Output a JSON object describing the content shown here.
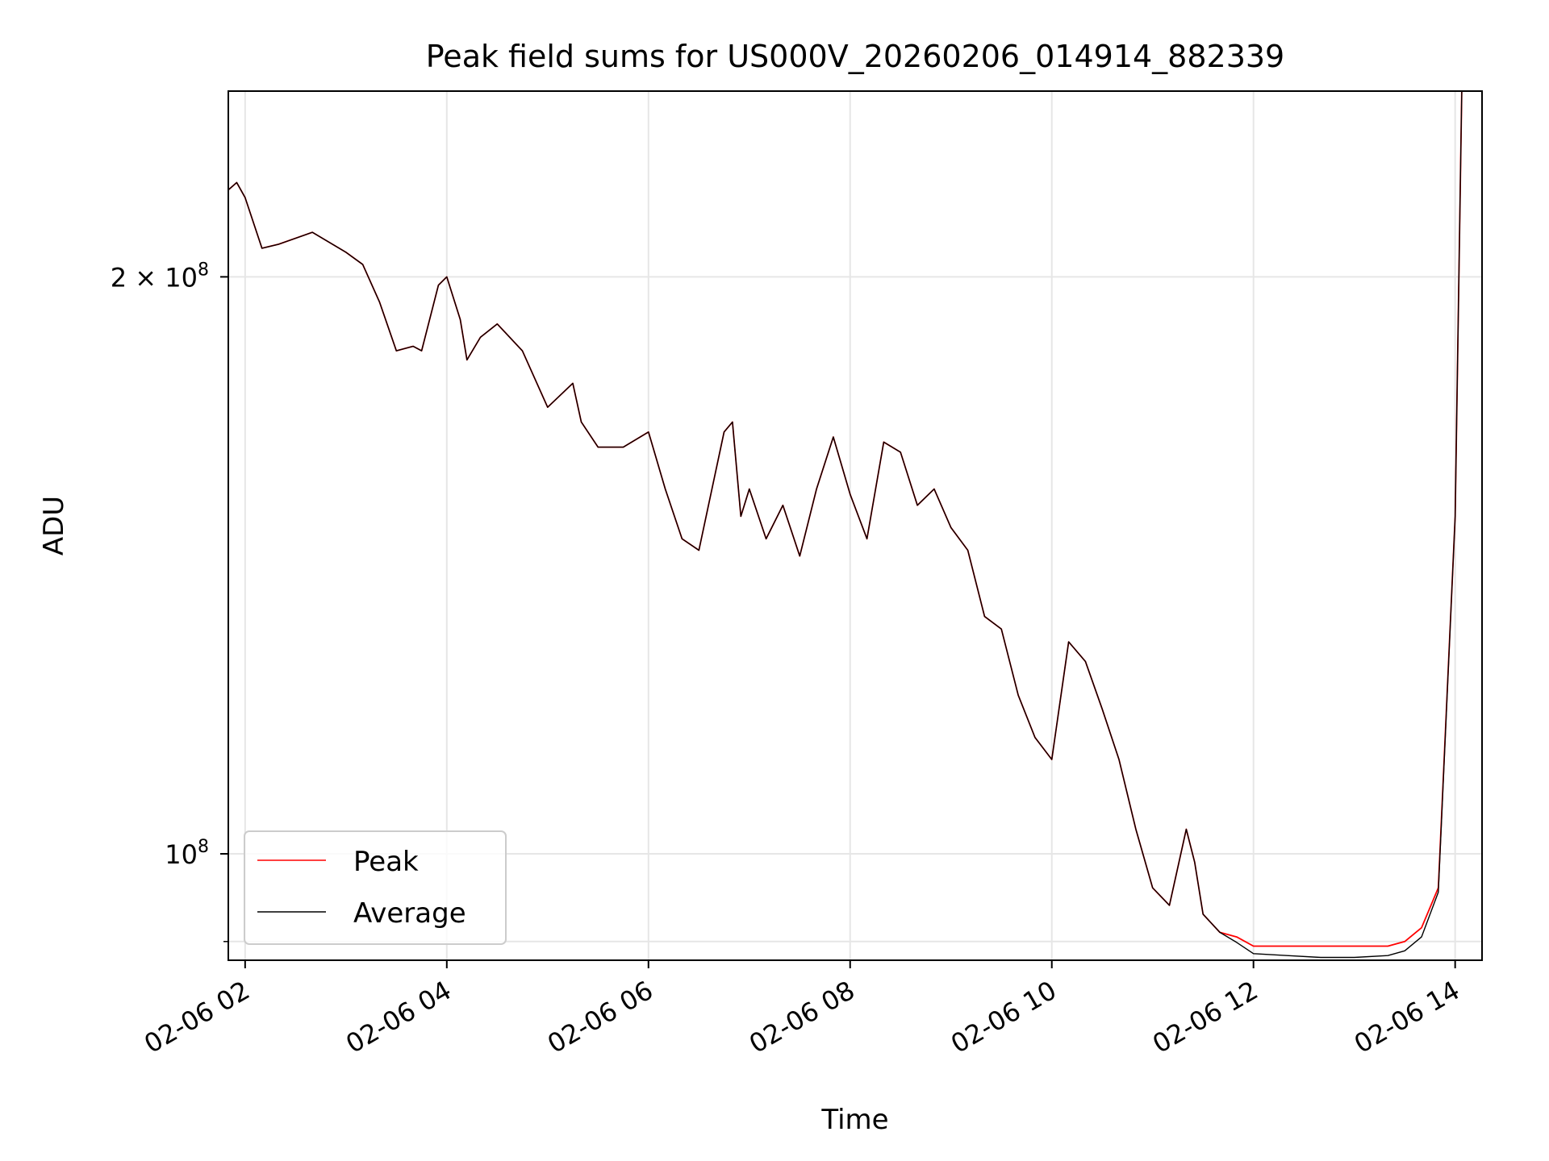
{
  "chart_data": {
    "type": "line",
    "title": "Peak field sums for US000V_20260206_014914_882339",
    "xlabel": "Time",
    "ylabel": "ADU",
    "yscale": "log",
    "ylim": [
      88000000,
      250000000
    ],
    "xlim": [
      "02-06 01:50",
      "02-06 14:16"
    ],
    "grid": true,
    "legend_position": "lower-left",
    "x_ticks": [
      {
        "value": "02-06 02:00",
        "label": "02-06 02"
      },
      {
        "value": "02-06 04:00",
        "label": "02-06 04"
      },
      {
        "value": "02-06 06:00",
        "label": "02-06 06"
      },
      {
        "value": "02-06 08:00",
        "label": "02-06 08"
      },
      {
        "value": "02-06 10:00",
        "label": "02-06 10"
      },
      {
        "value": "02-06 12:00",
        "label": "02-06 12"
      },
      {
        "value": "02-06 14:00",
        "label": "02-06 14"
      }
    ],
    "y_ticks": [
      {
        "value": 200000000,
        "base": "2 × 10",
        "exp": "8"
      },
      {
        "value": 100000000,
        "base": "10",
        "exp": "8"
      }
    ],
    "x": [
      "02-06 01:50",
      "02-06 01:55",
      "02-06 02:00",
      "02-06 02:10",
      "02-06 02:20",
      "02-06 02:40",
      "02-06 03:00",
      "02-06 03:10",
      "02-06 03:20",
      "02-06 03:30",
      "02-06 03:40",
      "02-06 03:45",
      "02-06 03:55",
      "02-06 04:00",
      "02-06 04:08",
      "02-06 04:12",
      "02-06 04:20",
      "02-06 04:30",
      "02-06 04:45",
      "02-06 05:00",
      "02-06 05:15",
      "02-06 05:20",
      "02-06 05:30",
      "02-06 05:45",
      "02-06 06:00",
      "02-06 06:10",
      "02-06 06:20",
      "02-06 06:30",
      "02-06 06:45",
      "02-06 06:50",
      "02-06 06:55",
      "02-06 07:00",
      "02-06 07:10",
      "02-06 07:20",
      "02-06 07:30",
      "02-06 07:40",
      "02-06 07:50",
      "02-06 08:00",
      "02-06 08:10",
      "02-06 08:20",
      "02-06 08:30",
      "02-06 08:40",
      "02-06 08:50",
      "02-06 09:00",
      "02-06 09:10",
      "02-06 09:20",
      "02-06 09:30",
      "02-06 09:40",
      "02-06 09:50",
      "02-06 10:00",
      "02-06 10:10",
      "02-06 10:20",
      "02-06 10:30",
      "02-06 10:40",
      "02-06 10:50",
      "02-06 11:00",
      "02-06 11:10",
      "02-06 11:20",
      "02-06 11:25",
      "02-06 11:30",
      "02-06 11:40",
      "02-06 11:50",
      "02-06 12:00",
      "02-06 12:20",
      "02-06 12:40",
      "02-06 13:00",
      "02-06 13:20",
      "02-06 13:30",
      "02-06 13:40",
      "02-06 13:50",
      "02-06 14:00",
      "02-06 14:04"
    ],
    "series": [
      {
        "name": "Peak",
        "color": "#ff0000",
        "values": [
          222000000,
          224000000,
          220000000,
          207000000,
          208000000,
          211000000,
          206000000,
          203000000,
          194000000,
          183000000,
          184000000,
          183000000,
          198000000,
          200000000,
          190000000,
          181000000,
          186000000,
          189000000,
          183000000,
          171000000,
          176000000,
          168000000,
          163000000,
          163000000,
          166000000,
          155000000,
          146000000,
          144000000,
          166000000,
          168000000,
          150000000,
          155000000,
          146000000,
          152000000,
          143000000,
          155000000,
          165000000,
          154000000,
          146000000,
          164000000,
          162000000,
          152000000,
          155000000,
          148000000,
          144000000,
          133000000,
          131000000,
          121000000,
          115000000,
          112000000,
          129000000,
          126000000,
          119000000,
          112000000,
          103000000,
          96000000,
          94000000,
          103000000,
          99000000,
          93000000,
          91000000,
          90500000,
          89500000,
          89500000,
          89500000,
          89500000,
          89500000,
          90000000,
          91500000,
          96000000,
          150000000,
          252000000
        ]
      },
      {
        "name": "Average",
        "color": "#000000",
        "values": [
          222000000,
          224000000,
          220000000,
          207000000,
          208000000,
          211000000,
          206000000,
          203000000,
          194000000,
          183000000,
          184000000,
          183000000,
          198000000,
          200000000,
          190000000,
          181000000,
          186000000,
          189000000,
          183000000,
          171000000,
          176000000,
          168000000,
          163000000,
          163000000,
          166000000,
          155000000,
          146000000,
          144000000,
          166000000,
          168000000,
          150000000,
          155000000,
          146000000,
          152000000,
          143000000,
          155000000,
          165000000,
          154000000,
          146000000,
          164000000,
          162000000,
          152000000,
          155000000,
          148000000,
          144000000,
          133000000,
          131000000,
          121000000,
          115000000,
          112000000,
          129000000,
          126000000,
          119000000,
          112000000,
          103000000,
          96000000,
          94000000,
          103000000,
          99000000,
          93000000,
          91000000,
          89900000,
          88700000,
          88500000,
          88300000,
          88300000,
          88500000,
          89000000,
          90500000,
          95500000,
          150000000,
          252000000
        ]
      }
    ]
  }
}
